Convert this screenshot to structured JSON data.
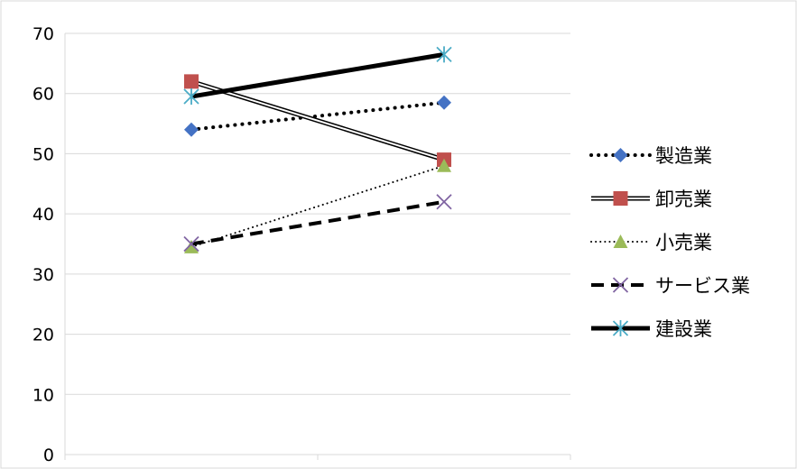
{
  "chart_data": {
    "type": "line",
    "ylim": [
      0,
      70
    ],
    "yticks": [
      "0",
      "10",
      "20",
      "30",
      "40",
      "50",
      "60",
      "70"
    ],
    "x_count": 2,
    "grid": true,
    "legend_position": "right",
    "series": [
      {
        "name": "製造業",
        "values": [
          54,
          58.5
        ],
        "color": "#4472C4",
        "line_color": "#000000",
        "line": "dotted-bold",
        "marker": "diamond"
      },
      {
        "name": "卸売業",
        "values": [
          62,
          49
        ],
        "color": "#C0504D",
        "line_color": "#000000",
        "line": "double",
        "marker": "square"
      },
      {
        "name": "小売業",
        "values": [
          34.5,
          48
        ],
        "color": "#9BBB59",
        "line_color": "#000000",
        "line": "dotted-thin",
        "marker": "triangle"
      },
      {
        "name": "サービス業",
        "values": [
          35,
          42
        ],
        "color": "#8064A2",
        "line_color": "#000000",
        "line": "dashed",
        "marker": "x"
      },
      {
        "name": "建設業",
        "values": [
          59.5,
          66.5
        ],
        "color": "#4BACC6",
        "line_color": "#000000",
        "line": "solid-thick",
        "marker": "star"
      }
    ]
  }
}
